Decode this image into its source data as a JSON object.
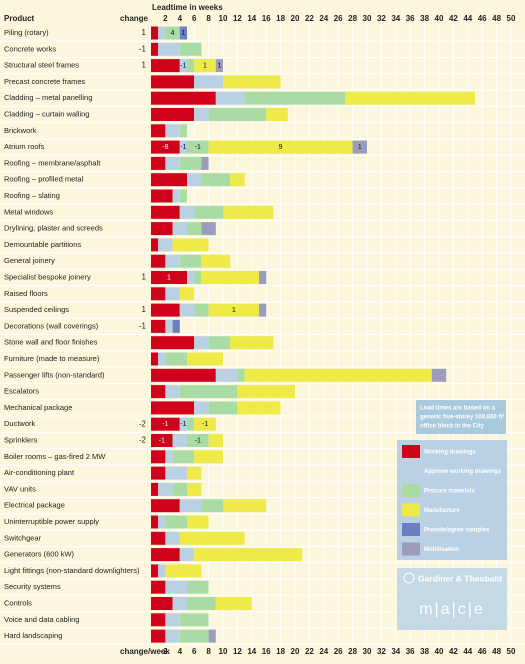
{
  "chart_data": {
    "type": "stacked-barh",
    "xlabel": "Leadtime in weeks",
    "row_header": "Product",
    "change_header": "change",
    "bottom_label": "change/week",
    "xlim": [
      0,
      50
    ],
    "xticks": [
      2,
      4,
      6,
      8,
      10,
      12,
      14,
      16,
      18,
      20,
      22,
      24,
      26,
      28,
      30,
      32,
      34,
      36,
      38,
      40,
      42,
      44,
      46,
      48,
      50
    ],
    "grid": true,
    "categories": [
      "Piling (rotary)",
      "Concrete works",
      "Structural steel frames",
      "Precast concrete frames",
      "Cladding – metal panelling",
      "Cladding – curtain walling",
      "Brickwork",
      "Atrium roofs",
      "Roofing – membrane/asphalt",
      "Roofing – profiled metal",
      "Roofing – slating",
      "Metal windows",
      "Drylining, plaster and screeds",
      "Demountable partitions",
      "General joinery",
      "Specialist bespoke joinery",
      "Raised floors",
      "Suspended ceilings",
      "Decorations (wall coverings)",
      "Stone wall and floor finishes",
      "Furniture (made to measure)",
      "Passenger lifts (non-standard)",
      "Escalators",
      "Mechanical package",
      "Ductwork",
      "Sprinklers",
      "Boiler rooms – gas-fired 2 MW",
      "Air-conditioning plant",
      "VAV units",
      "Electrical package",
      "Uninterruptible power supply",
      "Switchgear",
      "Generators (600 kW)",
      "Light fittings (non-standard downlighters)",
      "Security systems",
      "Controls",
      "Voice and data cabling",
      "Hard landscaping"
    ],
    "change": [
      1,
      -1,
      1,
      null,
      null,
      null,
      null,
      null,
      null,
      null,
      null,
      null,
      null,
      null,
      null,
      1,
      null,
      1,
      -1,
      null,
      null,
      null,
      null,
      null,
      -2,
      -2,
      null,
      null,
      null,
      null,
      null,
      null,
      null,
      null,
      null,
      null,
      null,
      null
    ],
    "series": [
      {
        "name": "Working drawings",
        "color": "#d0021b",
        "values": [
          1,
          1,
          4,
          6,
          9,
          6,
          2,
          4,
          2,
          5,
          3,
          4,
          3,
          1,
          2,
          5,
          2,
          4,
          2,
          6,
          1,
          9,
          2,
          6,
          4,
          3,
          2,
          2,
          1,
          4,
          1,
          2,
          4,
          1,
          2,
          3,
          2,
          2
        ],
        "changes": [
          null,
          null,
          null,
          null,
          null,
          null,
          null,
          -8,
          null,
          null,
          null,
          null,
          null,
          null,
          null,
          1,
          null,
          null,
          null,
          null,
          null,
          null,
          null,
          null,
          -1,
          -1,
          null,
          null,
          null,
          null,
          null,
          null,
          null,
          null,
          null,
          null,
          null,
          null
        ]
      },
      {
        "name": "Approve working drawings",
        "color": "#b9d1e3",
        "values": [
          1,
          3,
          1,
          4,
          4,
          2,
          2,
          1,
          2,
          2,
          1,
          2,
          2,
          2,
          2,
          1,
          2,
          2,
          1,
          2,
          1,
          3,
          2,
          2,
          1,
          2,
          1,
          3,
          2,
          3,
          1,
          2,
          2,
          1,
          3,
          2,
          2,
          2
        ],
        "changes": [
          null,
          null,
          -1,
          null,
          null,
          null,
          null,
          -1,
          null,
          null,
          null,
          null,
          null,
          null,
          null,
          null,
          null,
          null,
          null,
          null,
          null,
          null,
          null,
          null,
          -1,
          null,
          null,
          null,
          null,
          null,
          null,
          null,
          null,
          null,
          null,
          null,
          null,
          null
        ]
      },
      {
        "name": "Procure materials",
        "color": "#a9dca4",
        "values": [
          2,
          3,
          1,
          null,
          14,
          8,
          1,
          3,
          3,
          4,
          1,
          4,
          2,
          null,
          3,
          1,
          null,
          2,
          null,
          3,
          3,
          1,
          8,
          4,
          1,
          3,
          3,
          null,
          2,
          3,
          3,
          null,
          null,
          null,
          3,
          4,
          4,
          4
        ],
        "changes": [
          4,
          null,
          null,
          null,
          null,
          null,
          null,
          -1,
          null,
          null,
          null,
          null,
          null,
          null,
          null,
          null,
          null,
          null,
          null,
          null,
          null,
          null,
          null,
          null,
          null,
          -1,
          null,
          null,
          null,
          null,
          null,
          null,
          null,
          null,
          null,
          null,
          null,
          null
        ]
      },
      {
        "name": "Manufacture",
        "color": "#eeea4a",
        "values": [
          null,
          null,
          3,
          8,
          18,
          3,
          null,
          20,
          null,
          2,
          null,
          7,
          null,
          5,
          4,
          8,
          2,
          7,
          null,
          6,
          5,
          26,
          8,
          6,
          3,
          2,
          4,
          2,
          2,
          6,
          3,
          9,
          15,
          5,
          null,
          5,
          null,
          null
        ],
        "changes": [
          null,
          null,
          1,
          null,
          null,
          null,
          null,
          9,
          null,
          null,
          null,
          null,
          null,
          null,
          null,
          null,
          null,
          1,
          null,
          null,
          null,
          null,
          null,
          null,
          -1,
          null,
          null,
          null,
          null,
          null,
          null,
          null,
          null,
          null,
          null,
          null,
          null,
          null
        ]
      },
      {
        "name": "Provide/agree samples",
        "color": "#6b7fc2",
        "values": [
          1,
          null,
          null,
          null,
          null,
          null,
          null,
          null,
          null,
          null,
          null,
          null,
          null,
          null,
          null,
          null,
          null,
          null,
          1,
          null,
          null,
          null,
          null,
          null,
          null,
          null,
          null,
          null,
          null,
          null,
          null,
          null,
          null,
          null,
          null,
          null,
          null,
          null
        ],
        "changes": [
          1,
          null,
          null,
          null,
          null,
          null,
          null,
          null,
          null,
          null,
          null,
          null,
          null,
          null,
          null,
          null,
          null,
          null,
          null,
          null,
          null,
          null,
          null,
          null,
          null,
          null,
          null,
          null,
          null,
          null,
          null,
          null,
          null,
          null,
          null,
          null,
          null,
          null
        ]
      },
      {
        "name": "Mobilisation",
        "color": "#9c9cbc",
        "values": [
          null,
          null,
          1,
          null,
          null,
          null,
          null,
          2,
          1,
          null,
          null,
          null,
          2,
          null,
          null,
          1,
          null,
          1,
          null,
          null,
          null,
          2,
          null,
          null,
          null,
          null,
          null,
          null,
          null,
          null,
          null,
          null,
          null,
          null,
          null,
          null,
          null,
          1
        ],
        "changes": [
          null,
          null,
          1,
          null,
          null,
          null,
          null,
          1,
          null,
          null,
          null,
          null,
          null,
          null,
          null,
          null,
          null,
          null,
          null,
          null,
          null,
          null,
          null,
          null,
          null,
          null,
          null,
          null,
          null,
          null,
          null,
          null,
          null,
          null,
          null,
          null,
          null,
          null
        ]
      }
    ],
    "note": [
      "Lead times are based on a",
      "generic five-storey 100,000 ft²",
      "office block in the City"
    ],
    "logos": [
      "Gardiner & Theobald",
      "m|a|c|e"
    ]
  }
}
